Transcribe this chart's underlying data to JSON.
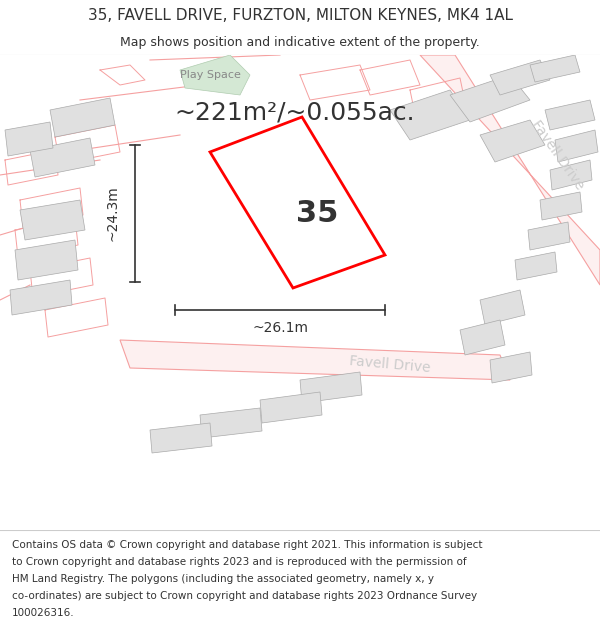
{
  "title_line1": "35, FAVELL DRIVE, FURZTON, MILTON KEYNES, MK4 1AL",
  "title_line2": "Map shows position and indicative extent of the property.",
  "area_text": "~221m²/~0.055ac.",
  "property_number": "35",
  "dim_height": "~24.3m",
  "dim_width": "~26.1m",
  "road_label_right": "Favell Drive",
  "road_label_bottom": "Favell Drive",
  "play_space_label": "Play Space",
  "footer_lines": [
    "Contains OS data © Crown copyright and database right 2021. This information is subject",
    "to Crown copyright and database rights 2023 and is reproduced with the permission of",
    "HM Land Registry. The polygons (including the associated geometry, namely x, y",
    "co-ordinates) are subject to Crown copyright and database rights 2023 Ordnance Survey",
    "100026316."
  ],
  "map_bg": "#ffffff",
  "plot_color": "#ff0000",
  "building_color": "#e0e0e0",
  "road_line_color": "#f5a0a0",
  "dim_line_color": "#333333",
  "text_color": "#333333",
  "title_fontsize": 11,
  "subtitle_fontsize": 9,
  "area_fontsize": 18,
  "property_num_fontsize": 22,
  "dim_fontsize": 10,
  "footer_fontsize": 7.5
}
